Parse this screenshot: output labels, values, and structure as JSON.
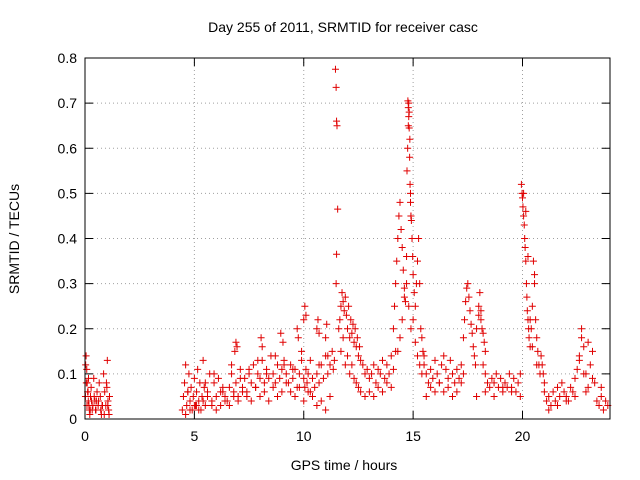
{
  "chart_data": {
    "type": "scatter",
    "title": "Day 255 of 2011, SRMTID for receiver casc",
    "xlabel": "GPS time / hours",
    "ylabel": "SRMTID / TECUs",
    "xlim": [
      0,
      24
    ],
    "ylim": [
      0,
      0.8
    ],
    "xticks": [
      0,
      5,
      10,
      15,
      20
    ],
    "yticks": [
      0,
      0.1,
      0.2,
      0.3,
      0.4,
      0.5,
      0.6,
      0.7,
      0.8
    ],
    "xtick_labels": [
      "0",
      "5",
      "10",
      "15",
      "20"
    ],
    "ytick_labels": [
      "0",
      "0.1",
      "0.2",
      "0.3",
      "0.4",
      "0.5",
      "0.6",
      "0.7",
      "0.8"
    ],
    "grid": true,
    "marker": "+",
    "series": [
      {
        "name": "SRMTID",
        "color": "#e00000",
        "x": [
          0.02,
          0.05,
          0.08,
          0.1,
          0.12,
          0.15,
          0.18,
          0.2,
          0.22,
          0.25,
          0.28,
          0.3,
          0.33,
          0.36,
          0.4,
          0.45,
          0.5,
          0.55,
          0.6,
          0.65,
          0.7,
          0.72,
          0.75,
          0.8,
          0.85,
          0.9,
          0.95,
          1.0,
          1.02,
          1.05,
          1.08,
          1.1,
          1.12,
          0.03,
          0.06,
          0.09,
          0.14,
          0.42,
          0.48,
          0.62,
          0.78,
          0.88,
          0.98,
          1.04,
          0.16,
          0.24,
          0.52,
          4.45,
          4.5,
          4.55,
          4.6,
          4.65,
          4.7,
          4.75,
          4.8,
          4.85,
          4.9,
          4.95,
          5.0,
          5.05,
          5.1,
          5.15,
          5.2,
          5.25,
          5.3,
          5.35,
          5.4,
          5.45,
          5.5,
          5.6,
          5.7,
          5.8,
          5.9,
          6.0,
          6.1,
          6.2,
          6.3,
          6.4,
          6.5,
          6.6,
          6.7,
          6.8,
          6.9,
          7.0,
          7.1,
          7.2,
          7.3,
          7.4,
          7.5,
          7.6,
          7.7,
          7.8,
          7.9,
          8.0,
          8.1,
          8.2,
          8.3,
          8.4,
          8.5,
          8.6,
          8.7,
          8.8,
          8.9,
          9.0,
          9.1,
          9.2,
          9.3,
          9.4,
          9.5,
          9.6,
          9.7,
          9.8,
          9.9,
          10.0,
          10.05,
          10.1,
          10.15,
          10.2,
          10.3,
          10.4,
          10.5,
          10.6,
          10.7,
          10.8,
          10.9,
          11.0,
          11.1,
          11.2,
          11.3,
          11.35,
          11.4,
          4.6,
          4.8,
          5.0,
          5.2,
          5.4,
          5.6,
          5.8,
          6.0,
          6.2,
          6.4,
          6.6,
          6.8,
          7.0,
          7.2,
          7.4,
          7.6,
          7.8,
          8.0,
          8.2,
          8.4,
          8.6,
          8.8,
          9.0,
          9.2,
          9.4,
          9.6,
          9.8,
          10.0,
          10.2,
          10.4,
          10.6,
          10.8,
          11.0,
          11.2,
          4.7,
          5.1,
          5.5,
          5.9,
          6.3,
          6.7,
          7.1,
          7.5,
          7.9,
          8.3,
          8.7,
          9.1,
          9.5,
          9.9,
          10.3,
          10.7,
          11.1,
          6.85,
          6.9,
          6.95,
          8.05,
          8.1,
          8.95,
          9.05,
          9.7,
          9.75,
          10.0,
          10.05,
          10.1,
          10.6,
          10.65,
          10.7,
          11.0,
          11.05,
          11.45,
          11.48,
          11.5,
          11.52,
          11.55,
          11.5,
          11.48,
          11.6,
          11.65,
          11.7,
          11.75,
          11.8,
          11.85,
          11.9,
          11.95,
          12.0,
          12.05,
          12.1,
          12.15,
          12.2,
          12.25,
          12.3,
          12.35,
          12.4,
          12.45,
          12.5,
          12.55,
          12.6,
          12.7,
          12.8,
          12.9,
          13.0,
          13.1,
          13.2,
          13.3,
          13.4,
          13.5,
          13.6,
          13.7,
          13.8,
          13.9,
          14.0,
          14.1,
          14.2,
          11.7,
          11.8,
          11.9,
          12.0,
          12.1,
          12.2,
          12.3,
          12.4,
          12.5,
          12.6,
          12.8,
          13.0,
          13.2,
          13.4,
          13.6,
          13.8,
          14.0,
          14.1,
          14.15,
          14.2,
          14.25,
          14.3,
          14.35,
          14.4,
          14.45,
          14.5,
          14.55,
          14.6,
          14.65,
          14.7,
          14.72,
          14.75,
          14.78,
          14.8,
          14.82,
          14.85,
          14.88,
          14.9,
          14.92,
          14.95,
          14.98,
          15.0,
          15.05,
          15.1,
          15.15,
          15.2,
          15.25,
          15.3,
          15.35,
          15.4,
          15.45,
          15.5,
          14.3,
          14.4,
          14.5,
          14.6,
          14.7,
          14.8,
          14.9,
          15.0,
          15.1,
          15.2,
          15.3,
          15.4,
          14.76,
          14.78,
          14.8,
          14.82,
          14.84,
          14.86,
          14.88,
          14.9,
          15.5,
          15.6,
          15.7,
          15.8,
          15.9,
          16.0,
          16.1,
          16.2,
          16.3,
          16.4,
          16.5,
          16.6,
          16.7,
          16.8,
          16.9,
          17.0,
          17.1,
          17.2,
          17.3,
          15.6,
          15.8,
          16.0,
          16.2,
          16.4,
          16.6,
          16.8,
          17.0,
          17.2,
          17.3,
          17.35,
          17.4,
          17.45,
          17.5,
          17.55,
          17.6,
          17.65,
          17.7,
          17.75,
          17.8,
          17.85,
          17.9,
          18.0,
          18.1,
          18.2,
          18.3,
          18.4,
          18.5,
          18.6,
          18.7,
          18.8,
          18.9,
          19.0,
          19.1,
          19.2,
          19.3,
          19.4,
          19.5,
          19.6,
          19.7,
          19.8,
          19.9,
          18.0,
          18.05,
          18.1,
          18.15,
          18.2,
          18.25,
          18.3,
          17.9,
          18.3,
          18.7,
          19.1,
          19.5,
          19.9,
          19.95,
          19.98,
          20.0,
          20.02,
          20.05,
          20.08,
          20.1,
          20.12,
          20.15,
          20.18,
          20.2,
          20.22,
          20.25,
          20.28,
          20.3,
          20.35,
          20.4,
          20.45,
          20.5,
          20.55,
          20.6,
          20.65,
          20.7,
          20.75,
          20.8,
          20.85,
          20.9,
          20.95,
          21.0,
          20.05,
          20.15,
          20.25,
          20.35,
          20.45,
          20.55,
          20.65,
          21.0,
          21.1,
          21.2,
          21.3,
          21.4,
          21.5,
          21.6,
          21.7,
          21.8,
          21.9,
          22.0,
          22.1,
          22.2,
          22.3,
          22.4,
          22.5,
          22.6,
          22.7,
          22.8,
          22.9,
          23.0,
          23.1,
          23.2,
          23.3,
          23.4,
          23.5,
          23.6,
          23.7,
          23.8,
          23.9,
          21.2,
          21.6,
          22.0,
          22.4,
          22.6,
          22.7,
          22.8,
          22.9,
          23.0,
          23.2,
          23.6
        ],
        "y": [
          0.05,
          0.14,
          0.11,
          0.08,
          0.06,
          0.04,
          0.03,
          0.02,
          0.01,
          0.05,
          0.07,
          0.04,
          0.02,
          0.03,
          0.09,
          0.04,
          0.02,
          0.06,
          0.03,
          0.08,
          0.05,
          0.02,
          0.01,
          0.03,
          0.1,
          0.06,
          0.03,
          0.07,
          0.13,
          0.04,
          0.02,
          0.01,
          0.05,
          0.12,
          0.08,
          0.03,
          0.06,
          0.05,
          0.02,
          0.04,
          0.03,
          0.01,
          0.08,
          0.03,
          0.09,
          0.02,
          0.04,
          0.02,
          0.05,
          0.08,
          0.12,
          0.03,
          0.06,
          0.1,
          0.04,
          0.07,
          0.02,
          0.05,
          0.09,
          0.03,
          0.06,
          0.11,
          0.04,
          0.08,
          0.02,
          0.05,
          0.13,
          0.07,
          0.03,
          0.06,
          0.1,
          0.04,
          0.08,
          0.05,
          0.09,
          0.03,
          0.06,
          0.05,
          0.04,
          0.07,
          0.1,
          0.06,
          0.08,
          0.05,
          0.11,
          0.07,
          0.09,
          0.06,
          0.1,
          0.08,
          0.12,
          0.07,
          0.1,
          0.09,
          0.13,
          0.08,
          0.11,
          0.09,
          0.14,
          0.1,
          0.08,
          0.12,
          0.09,
          0.11,
          0.13,
          0.1,
          0.08,
          0.12,
          0.09,
          0.11,
          0.07,
          0.1,
          0.13,
          0.09,
          0.07,
          0.11,
          0.08,
          0.1,
          0.06,
          0.09,
          0.07,
          0.1,
          0.08,
          0.12,
          0.09,
          0.14,
          0.1,
          0.12,
          0.15,
          0.11,
          0.13,
          0.01,
          0.02,
          0.03,
          0.02,
          0.04,
          0.05,
          0.03,
          0.02,
          0.06,
          0.04,
          0.03,
          0.05,
          0.04,
          0.06,
          0.05,
          0.04,
          0.07,
          0.05,
          0.06,
          0.04,
          0.07,
          0.05,
          0.06,
          0.08,
          0.06,
          0.05,
          0.07,
          0.04,
          0.06,
          0.05,
          0.03,
          0.04,
          0.02,
          0.05,
          0.06,
          0.03,
          0.08,
          0.1,
          0.07,
          0.12,
          0.09,
          0.11,
          0.13,
          0.1,
          0.14,
          0.12,
          0.11,
          0.15,
          0.13,
          0.12,
          0.14,
          0.15,
          0.17,
          0.16,
          0.18,
          0.16,
          0.19,
          0.17,
          0.2,
          0.18,
          0.22,
          0.25,
          0.23,
          0.2,
          0.22,
          0.19,
          0.18,
          0.21,
          0.775,
          0.735,
          0.66,
          0.65,
          0.465,
          0.365,
          0.3,
          0.2,
          0.22,
          0.25,
          0.28,
          0.26,
          0.24,
          0.27,
          0.23,
          0.2,
          0.25,
          0.18,
          0.22,
          0.19,
          0.21,
          0.17,
          0.2,
          0.16,
          0.18,
          0.14,
          0.16,
          0.13,
          0.12,
          0.1,
          0.11,
          0.09,
          0.1,
          0.12,
          0.08,
          0.11,
          0.1,
          0.13,
          0.09,
          0.12,
          0.1,
          0.14,
          0.11,
          0.15,
          0.15,
          0.18,
          0.12,
          0.14,
          0.1,
          0.12,
          0.09,
          0.08,
          0.07,
          0.06,
          0.05,
          0.06,
          0.05,
          0.07,
          0.06,
          0.08,
          0.07,
          0.2,
          0.25,
          0.3,
          0.35,
          0.4,
          0.45,
          0.48,
          0.42,
          0.38,
          0.33,
          0.29,
          0.26,
          0.36,
          0.55,
          0.6,
          0.65,
          0.7,
          0.68,
          0.62,
          0.5,
          0.45,
          0.44,
          0.4,
          0.36,
          0.32,
          0.28,
          0.25,
          0.3,
          0.35,
          0.4,
          0.3,
          0.2,
          0.18,
          0.15,
          0.14,
          0.15,
          0.18,
          0.22,
          0.27,
          0.3,
          0.25,
          0.2,
          0.22,
          0.17,
          0.14,
          0.12,
          0.1,
          0.705,
          0.69,
          0.67,
          0.645,
          0.58,
          0.52,
          0.48,
          0.45,
          0.12,
          0.1,
          0.08,
          0.11,
          0.09,
          0.13,
          0.1,
          0.08,
          0.12,
          0.14,
          0.11,
          0.09,
          0.13,
          0.1,
          0.08,
          0.11,
          0.09,
          0.12,
          0.1,
          0.05,
          0.07,
          0.06,
          0.08,
          0.06,
          0.07,
          0.05,
          0.06,
          0.08,
          0.18,
          0.22,
          0.26,
          0.29,
          0.3,
          0.27,
          0.24,
          0.21,
          0.19,
          0.16,
          0.14,
          0.12,
          0.2,
          0.25,
          0.22,
          0.12,
          0.1,
          0.08,
          0.07,
          0.09,
          0.08,
          0.1,
          0.07,
          0.09,
          0.06,
          0.08,
          0.07,
          0.1,
          0.07,
          0.09,
          0.06,
          0.08,
          0.1,
          0.23,
          0.28,
          0.24,
          0.2,
          0.19,
          0.17,
          0.15,
          0.05,
          0.06,
          0.05,
          0.07,
          0.06,
          0.05,
          0.52,
          0.5,
          0.49,
          0.47,
          0.45,
          0.43,
          0.4,
          0.38,
          0.35,
          0.3,
          0.27,
          0.24,
          0.22,
          0.2,
          0.18,
          0.16,
          0.2,
          0.25,
          0.35,
          0.3,
          0.22,
          0.18,
          0.15,
          0.12,
          0.1,
          0.14,
          0.12,
          0.1,
          0.08,
          0.5,
          0.46,
          0.36,
          0.22,
          0.16,
          0.32,
          0.12,
          0.06,
          0.04,
          0.05,
          0.03,
          0.06,
          0.04,
          0.07,
          0.05,
          0.08,
          0.06,
          0.05,
          0.04,
          0.07,
          0.06,
          0.09,
          0.11,
          0.13,
          0.2,
          0.16,
          0.1,
          0.07,
          0.12,
          0.15,
          0.08,
          0.04,
          0.03,
          0.05,
          0.02,
          0.04,
          0.03,
          0.02,
          0.03,
          0.04,
          0.05,
          0.14,
          0.18,
          0.1,
          0.06,
          0.17,
          0.09,
          0.07
        ]
      }
    ]
  }
}
